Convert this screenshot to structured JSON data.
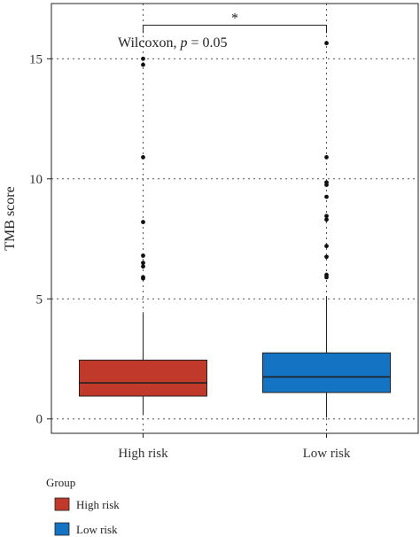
{
  "chart_data": {
    "type": "box",
    "ylabel": "TMB score",
    "ylim": [
      -0.6,
      17.3
    ],
    "yticks": [
      0,
      5,
      10,
      15
    ],
    "categories": [
      "High risk",
      "Low risk"
    ],
    "series": [
      {
        "name": "High risk",
        "color": "#C0392B",
        "whisker_low": 0.15,
        "q1": 0.95,
        "median": 1.5,
        "q3": 2.45,
        "whisker_high": 4.4,
        "outliers": [
          5.85,
          5.9,
          6.35,
          6.5,
          6.8,
          8.2,
          10.9,
          14.75,
          15.0
        ]
      },
      {
        "name": "Low risk",
        "color": "#1473C2",
        "whisker_low": 0.05,
        "q1": 1.1,
        "median": 1.75,
        "q3": 2.75,
        "whisker_high": 5.1,
        "outliers": [
          5.9,
          6.0,
          6.75,
          7.2,
          8.3,
          8.45,
          9.25,
          9.75,
          9.85,
          10.9,
          15.65
        ]
      }
    ],
    "annotation": {
      "significance": "*",
      "test_prefix": "Wilcoxon, ",
      "p_symbol": "p",
      "p_text": " = 0.05",
      "bracket_y": 16.4
    },
    "grid": true,
    "legend": {
      "title": "Group",
      "placement": "bottom-left",
      "items": [
        "High risk",
        "Low risk"
      ]
    }
  }
}
